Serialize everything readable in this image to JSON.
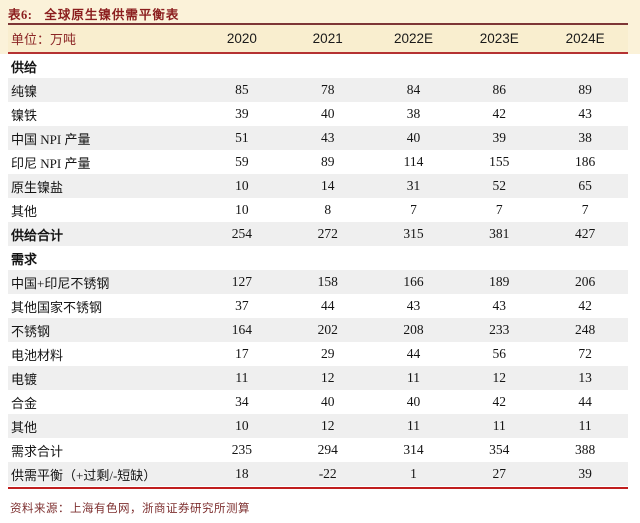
{
  "header": {
    "table_no": "表6:",
    "title": "全球原生镍供需平衡表",
    "unit": "单位：万吨",
    "columns": [
      "2020",
      "2021",
      "2022E",
      "2023E",
      "2024E"
    ]
  },
  "table": {
    "rows": [
      {
        "label": "供给",
        "type": "section",
        "values": [
          "",
          "",
          "",
          "",
          ""
        ]
      },
      {
        "label": "纯镍",
        "type": "data",
        "values": [
          "85",
          "78",
          "84",
          "86",
          "89"
        ]
      },
      {
        "label": "镍铁",
        "type": "data",
        "values": [
          "39",
          "40",
          "38",
          "42",
          "43"
        ]
      },
      {
        "label": "中国 NPI 产量",
        "type": "data",
        "values": [
          "51",
          "43",
          "40",
          "39",
          "38"
        ]
      },
      {
        "label": "印尼 NPI 产量",
        "type": "data",
        "values": [
          "59",
          "89",
          "114",
          "155",
          "186"
        ]
      },
      {
        "label": "原生镍盐",
        "type": "data",
        "values": [
          "10",
          "14",
          "31",
          "52",
          "65"
        ]
      },
      {
        "label": "其他",
        "type": "data",
        "values": [
          "10",
          "8",
          "7",
          "7",
          "7"
        ]
      },
      {
        "label": "供给合计",
        "type": "total",
        "values": [
          "254",
          "272",
          "315",
          "381",
          "427"
        ]
      },
      {
        "label": "需求",
        "type": "section",
        "values": [
          "",
          "",
          "",
          "",
          ""
        ]
      },
      {
        "label": "中国+印尼不锈钢",
        "type": "data",
        "values": [
          "127",
          "158",
          "166",
          "189",
          "206"
        ]
      },
      {
        "label": "其他国家不锈钢",
        "type": "data",
        "values": [
          "37",
          "44",
          "43",
          "43",
          "42"
        ]
      },
      {
        "label": "不锈钢",
        "type": "data",
        "values": [
          "164",
          "202",
          "208",
          "233",
          "248"
        ]
      },
      {
        "label": "电池材料",
        "type": "data",
        "values": [
          "17",
          "29",
          "44",
          "56",
          "72"
        ]
      },
      {
        "label": "电镀",
        "type": "data",
        "values": [
          "11",
          "12",
          "11",
          "12",
          "13"
        ]
      },
      {
        "label": "合金",
        "type": "data",
        "values": [
          "34",
          "40",
          "40",
          "42",
          "44"
        ]
      },
      {
        "label": "其他",
        "type": "data",
        "values": [
          "10",
          "12",
          "11",
          "11",
          "11"
        ]
      },
      {
        "label": "需求合计",
        "type": "total",
        "values": [
          "235",
          "294",
          "314",
          "354",
          "388"
        ]
      },
      {
        "label": "供需平衡（+过剩/-短缺）",
        "type": "balance",
        "values": [
          "18",
          "-22",
          "1",
          "27",
          "39"
        ]
      }
    ]
  },
  "footer": {
    "source": "资料来源：上海有色网，浙商证券研究所测算"
  },
  "colors": {
    "title_red": "#8B1E1E",
    "header_band_bg": "#F9EECF",
    "top_block_bg": "#FBF2D9",
    "border_dark_red": "#7D3636",
    "border_mid_red": "#B53232",
    "bottom_rule_red": "#C01E1E",
    "stripe_gray": "#EFEFEF",
    "source_text": "#7E3030"
  }
}
